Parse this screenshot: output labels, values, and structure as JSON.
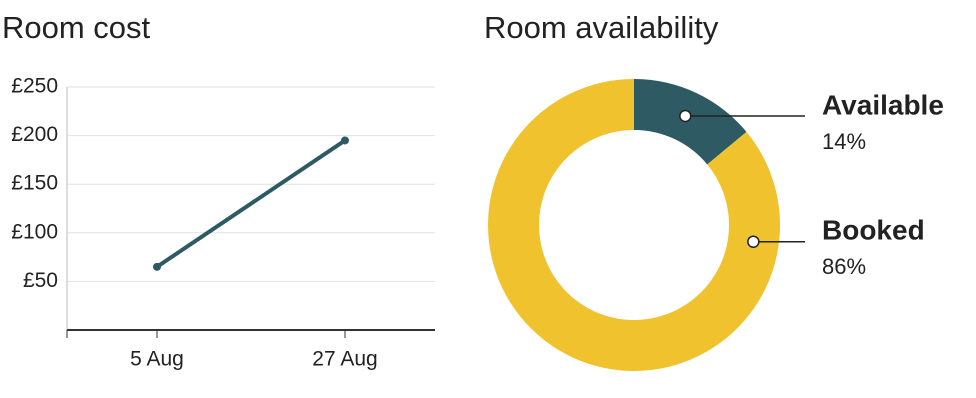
{
  "chart_data": [
    {
      "type": "line",
      "title": "Room cost",
      "categories": [
        "5 Aug",
        "27 Aug"
      ],
      "values": [
        65,
        195
      ],
      "color": "#2e5b63",
      "ylim": [
        0,
        250
      ],
      "yticks": [
        {
          "value": 50,
          "label": "£50"
        },
        {
          "value": 100,
          "label": "£100"
        },
        {
          "value": 150,
          "label": "£150"
        },
        {
          "value": 200,
          "label": "£200"
        },
        {
          "value": 250,
          "label": "£250"
        }
      ],
      "grid": true
    },
    {
      "type": "donut",
      "title": "Room availability",
      "categories": [
        "Available",
        "Booked"
      ],
      "values": [
        14,
        86
      ],
      "value_labels": [
        "14%",
        "86%"
      ],
      "colors": [
        "#2e5b63",
        "#f0c22e"
      ]
    }
  ]
}
